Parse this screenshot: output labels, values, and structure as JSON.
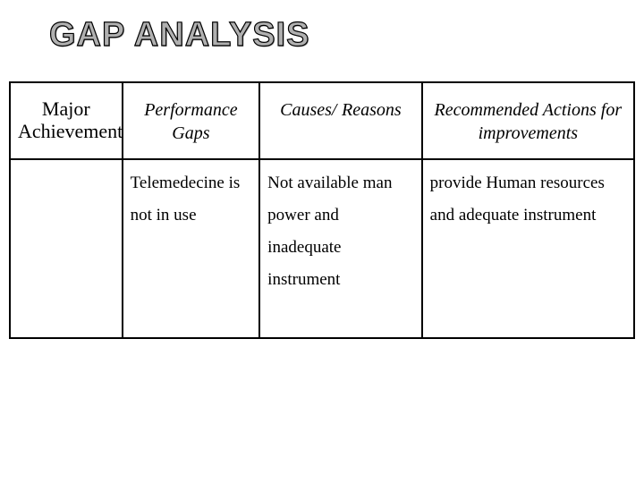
{
  "title": "GAP ANALYSIS",
  "table": {
    "columns": [
      {
        "line1": "Major",
        "line2": "Achievement",
        "italic": false
      },
      {
        "line1": "Performance",
        "line2": "Gaps",
        "italic": true
      },
      {
        "line1": "Causes/",
        "line2": "Reasons",
        "italic": true
      },
      {
        "line1": "Recommended Actions for",
        "line2": "improvements",
        "italic": true
      }
    ],
    "rows": [
      {
        "c1": "",
        "c2": "Telemedecine is not in  use",
        "c3": "Not available  man power  and inadequate instrument",
        "c4": "provide  Human resources and adequate instrument"
      }
    ],
    "border_color": "#000000",
    "background_color": "#ffffff",
    "title_fontsize": 38,
    "header_fontsize": 22,
    "body_fontsize": 19
  }
}
